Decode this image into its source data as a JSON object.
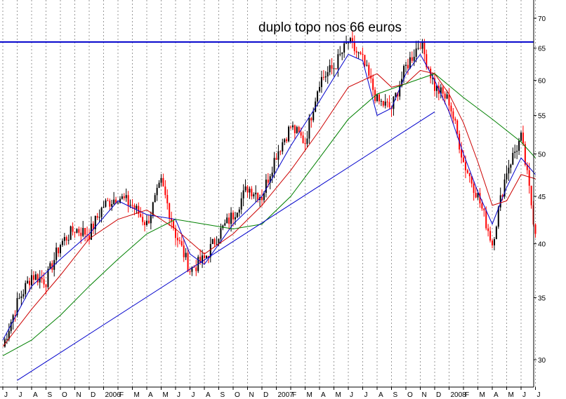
{
  "chart_data": {
    "type": "candlestick",
    "title": "",
    "xlabel": "",
    "ylabel": "",
    "y_scale": "log",
    "ylim": [
      27.5,
      72
    ],
    "grid": {
      "vertical_dotted": true,
      "horizontal": false
    },
    "legend": "none",
    "x_axis": {
      "tick_labels": [
        "J",
        "J",
        "A",
        "S",
        "O",
        "N",
        "D",
        "2006",
        "F",
        "M",
        "A",
        "M",
        "J",
        "J",
        "A",
        "S",
        "O",
        "N",
        "D",
        "2007",
        "F",
        "M",
        "A",
        "M",
        "J",
        "J",
        "A",
        "S",
        "O",
        "N",
        "D",
        "2008",
        "F",
        "M",
        "A",
        "M",
        "J",
        "J"
      ]
    },
    "y_axis": {
      "position": "right",
      "tick_labels": [
        "30",
        "35",
        "40",
        "45",
        "50",
        "55",
        "60",
        "65",
        "70"
      ],
      "tick_values": [
        30,
        35,
        40,
        45,
        50,
        55,
        60,
        65,
        70
      ]
    },
    "price": [
      [
        "2005-06",
        31
      ],
      [
        "2005-07",
        34.5
      ],
      [
        "2005-08",
        37
      ],
      [
        "2005-09",
        36.5
      ],
      [
        "2005-10",
        40
      ],
      [
        "2005-11",
        41.5
      ],
      [
        "2005-12",
        41
      ],
      [
        "2006-01",
        44
      ],
      [
        "2006-02",
        45
      ],
      [
        "2006-03",
        44
      ],
      [
        "2006-04",
        42
      ],
      [
        "2006-05",
        46.5
      ],
      [
        "2006-06",
        41
      ],
      [
        "2006-07",
        37.5
      ],
      [
        "2006-08",
        38.5
      ],
      [
        "2006-09",
        41
      ],
      [
        "2006-10",
        43
      ],
      [
        "2006-11",
        46
      ],
      [
        "2006-12",
        45
      ],
      [
        "2007-01",
        50
      ],
      [
        "2007-02",
        53.5
      ],
      [
        "2007-03",
        51.5
      ],
      [
        "2007-04",
        60
      ],
      [
        "2007-05",
        62
      ],
      [
        "2007-06",
        66
      ],
      [
        "2007-07",
        63
      ],
      [
        "2007-08",
        57
      ],
      [
        "2007-09",
        56
      ],
      [
        "2007-10",
        62
      ],
      [
        "2007-11",
        66
      ],
      [
        "2007-12",
        59
      ],
      [
        "2008-01",
        57
      ],
      [
        "2008-02",
        49
      ],
      [
        "2008-03",
        45
      ],
      [
        "2008-04",
        40
      ],
      [
        "2008-05",
        48
      ],
      [
        "2008-06",
        52
      ],
      [
        "2008-07",
        41
      ]
    ],
    "moving_averages": [
      {
        "color": "#0000cc",
        "values": [
          [
            "2005-06",
            31.5
          ],
          [
            "2005-08",
            36
          ],
          [
            "2005-10",
            38.5
          ],
          [
            "2005-12",
            41
          ],
          [
            "2006-02",
            44.5
          ],
          [
            "2006-04",
            43
          ],
          [
            "2006-06",
            42.5
          ],
          [
            "2006-07",
            39
          ],
          [
            "2006-08",
            38
          ],
          [
            "2006-10",
            42
          ],
          [
            "2006-12",
            45
          ],
          [
            "2007-02",
            51
          ],
          [
            "2007-04",
            57
          ],
          [
            "2007-06",
            64
          ],
          [
            "2007-07",
            63
          ],
          [
            "2007-08",
            55
          ],
          [
            "2007-09",
            56
          ],
          [
            "2007-10",
            61
          ],
          [
            "2007-11",
            64
          ],
          [
            "2007-12",
            60
          ],
          [
            "2008-01",
            55.5
          ],
          [
            "2008-02",
            50
          ],
          [
            "2008-03",
            45.5
          ],
          [
            "2008-04",
            42
          ],
          [
            "2008-05",
            46
          ],
          [
            "2008-06",
            49.5
          ],
          [
            "2008-07",
            47.5
          ]
        ]
      },
      {
        "color": "#cc0000",
        "values": [
          [
            "2005-06",
            31
          ],
          [
            "2005-08",
            34
          ],
          [
            "2005-10",
            37
          ],
          [
            "2005-12",
            40.5
          ],
          [
            "2006-02",
            42.5
          ],
          [
            "2006-04",
            43.5
          ],
          [
            "2006-06",
            41.5
          ],
          [
            "2006-08",
            39
          ],
          [
            "2006-10",
            41
          ],
          [
            "2006-12",
            44
          ],
          [
            "2007-02",
            48
          ],
          [
            "2007-04",
            53
          ],
          [
            "2007-06",
            59
          ],
          [
            "2007-08",
            61
          ],
          [
            "2007-09",
            59
          ],
          [
            "2007-10",
            59.5
          ],
          [
            "2007-11",
            61.5
          ],
          [
            "2007-12",
            61
          ],
          [
            "2008-01",
            58
          ],
          [
            "2008-02",
            54
          ],
          [
            "2008-03",
            49
          ],
          [
            "2008-04",
            44
          ],
          [
            "2008-05",
            44.5
          ],
          [
            "2008-06",
            47.5
          ],
          [
            "2008-07",
            47
          ]
        ]
      },
      {
        "color": "#008000",
        "values": [
          [
            "2005-06",
            30.3
          ],
          [
            "2005-08",
            31.5
          ],
          [
            "2005-10",
            33.5
          ],
          [
            "2005-12",
            36
          ],
          [
            "2006-02",
            38.5
          ],
          [
            "2006-04",
            41
          ],
          [
            "2006-06",
            42.5
          ],
          [
            "2006-08",
            42
          ],
          [
            "2006-10",
            41.5
          ],
          [
            "2006-12",
            42
          ],
          [
            "2007-02",
            45
          ],
          [
            "2007-04",
            49.5
          ],
          [
            "2007-06",
            54.5
          ],
          [
            "2007-08",
            58
          ],
          [
            "2007-10",
            59.5
          ],
          [
            "2007-12",
            61
          ],
          [
            "2008-02",
            57.5
          ],
          [
            "2008-04",
            54.5
          ],
          [
            "2008-06",
            51.5
          ],
          [
            "2008-07",
            49.5
          ]
        ]
      }
    ],
    "annotations": [
      {
        "type": "horizontal_line",
        "value": 66,
        "color": "#0000cc",
        "text": "duplo topo nos 66 euros"
      },
      {
        "type": "trendline",
        "color": "#0000cc",
        "from": [
          "2005-07",
          28.5
        ],
        "to": [
          "2007-12",
          55.5
        ]
      }
    ]
  }
}
